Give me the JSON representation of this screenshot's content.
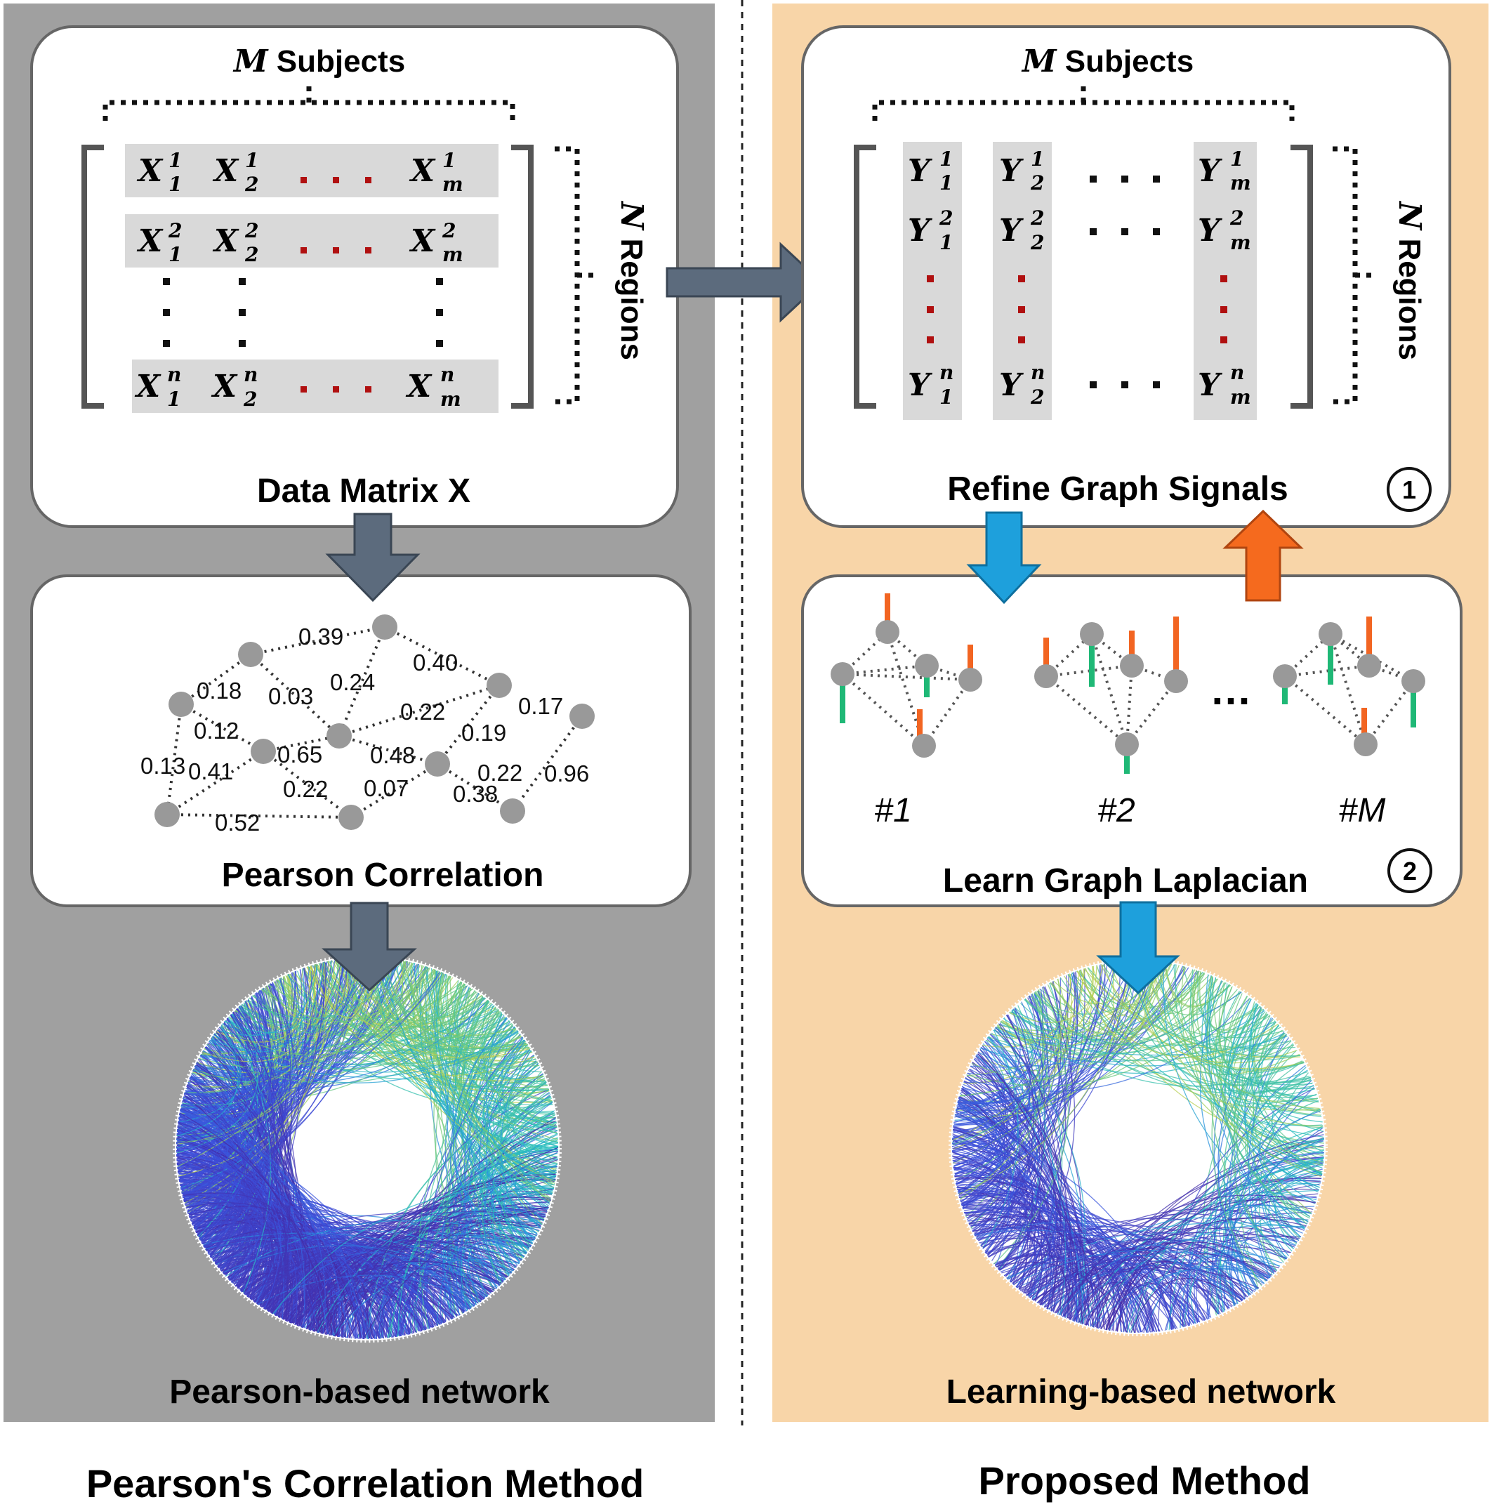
{
  "left_panel": {
    "subjects_label": {
      "var": "M",
      "text": "Subjects"
    },
    "regions_label": {
      "var": "N",
      "text": "Regions"
    },
    "matrix_title": "Data Matrix X",
    "matrix_rows": [
      {
        "cells": [
          {
            "base": "X",
            "sup": "1",
            "sub": "1"
          },
          {
            "base": "X",
            "sup": "1",
            "sub": "2"
          },
          {
            "base": "X",
            "sup": "1",
            "sub": "m"
          }
        ]
      },
      {
        "cells": [
          {
            "base": "X",
            "sup": "2",
            "sub": "1"
          },
          {
            "base": "X",
            "sup": "2",
            "sub": "2"
          },
          {
            "base": "X",
            "sup": "2",
            "sub": "m"
          }
        ]
      },
      {
        "cells": [
          {
            "base": "X",
            "sup": "n",
            "sub": "1"
          },
          {
            "base": "X",
            "sup": "n",
            "sub": "2"
          },
          {
            "base": "X",
            "sup": "n",
            "sub": "m"
          }
        ]
      }
    ],
    "correlation_title": "Pearson Correlation",
    "edge_labels": [
      "0.39",
      "0.40",
      "0.18",
      "0.03",
      "0.24",
      "0.22",
      "0.17",
      "0.12",
      "0.19",
      "0.65",
      "0.48",
      "0.13",
      "0.41",
      "0.22",
      "0.96",
      "0.22",
      "0.07",
      "0.38",
      "0.52"
    ],
    "network_caption": "Pearson-based network",
    "method_title": "Pearson's Correlation Method"
  },
  "right_panel": {
    "subjects_label": {
      "var": "M",
      "text": "Subjects"
    },
    "regions_label": {
      "var": "N",
      "text": "Regions"
    },
    "matrix_columns": [
      {
        "cells": [
          {
            "base": "Y",
            "sup": "1",
            "sub": "1"
          },
          {
            "base": "Y",
            "sup": "2",
            "sub": "1"
          },
          {
            "base": "Y",
            "sup": "n",
            "sub": "1"
          }
        ]
      },
      {
        "cells": [
          {
            "base": "Y",
            "sup": "1",
            "sub": "2"
          },
          {
            "base": "Y",
            "sup": "2",
            "sub": "2"
          },
          {
            "base": "Y",
            "sup": "n",
            "sub": "2"
          }
        ]
      },
      {
        "cells": [
          {
            "base": "Y",
            "sup": "1",
            "sub": "m"
          },
          {
            "base": "Y",
            "sup": "2",
            "sub": "m"
          },
          {
            "base": "Y",
            "sup": "n",
            "sub": "m"
          }
        ]
      }
    ],
    "refine_title": "Refine Graph Signals",
    "step1_badge": "1",
    "laplacian_title": "Learn Graph Laplacian",
    "step2_badge": "2",
    "graph_labels": [
      "#1",
      "#2",
      "#M"
    ],
    "graph_ellipsis": "…",
    "network_caption": "Learning-based network",
    "method_title": "Proposed Method"
  },
  "colors": {
    "left_bg": "#a0a0a0",
    "right_bg": "#f8d5a8",
    "arrow_dark": "#5c6b7d",
    "arrow_blue": "#1ea0dc",
    "arrow_orange": "#f56a1e",
    "signal_orange": "#f26522",
    "signal_green": "#1fb876",
    "node_grey": "#999999",
    "dot_red": "#b01010"
  }
}
